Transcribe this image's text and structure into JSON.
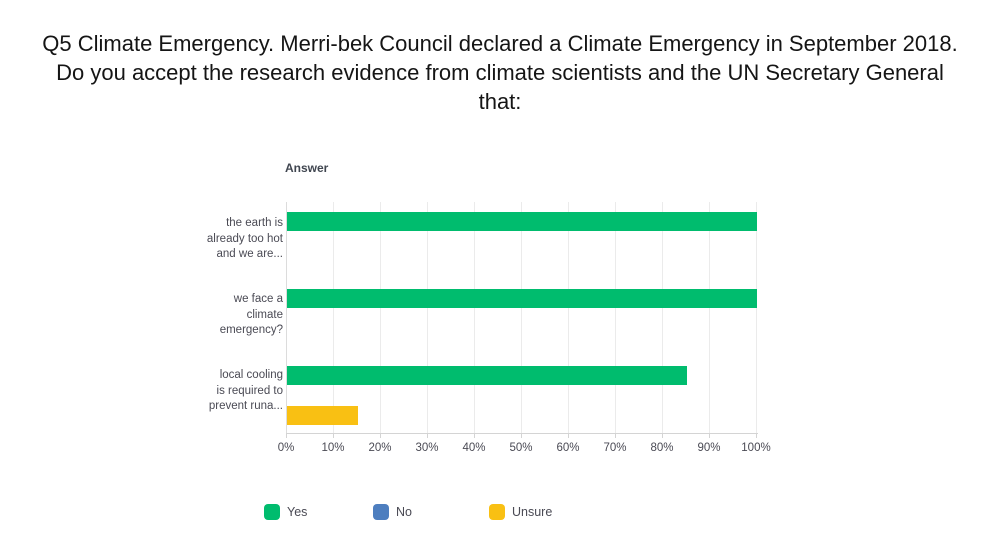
{
  "title": "Q5 Climate Emergency. Merri-bek Council declared a Climate Emergency in September 2018. Do you accept the research evidence from climate scientists and the UN Secretary General that:",
  "chart_data": {
    "type": "bar",
    "orientation": "horizontal",
    "axis_header": "Answer",
    "categories": [
      "the earth is\nalready too hot\nand we are...",
      "we face a\nclimate\nemergency?",
      "local cooling\nis required to\nprevent runa..."
    ],
    "series": [
      {
        "name": "Yes",
        "color": "#00bc6e",
        "values": [
          100,
          100,
          85
        ]
      },
      {
        "name": "No",
        "color": "#4d7ebf",
        "values": [
          0,
          0,
          0
        ]
      },
      {
        "name": "Unsure",
        "color": "#f9c013",
        "values": [
          0,
          0,
          15
        ]
      }
    ],
    "x_ticks": [
      "0%",
      "10%",
      "20%",
      "30%",
      "40%",
      "50%",
      "60%",
      "70%",
      "80%",
      "90%",
      "100%"
    ],
    "xlim": [
      0,
      100
    ],
    "grid": true,
    "legend_position": "bottom",
    "legend": [
      {
        "label": "Yes",
        "color": "#00bc6e"
      },
      {
        "label": "No",
        "color": "#4d7ebf"
      },
      {
        "label": "Unsure",
        "color": "#f9c013"
      }
    ]
  }
}
